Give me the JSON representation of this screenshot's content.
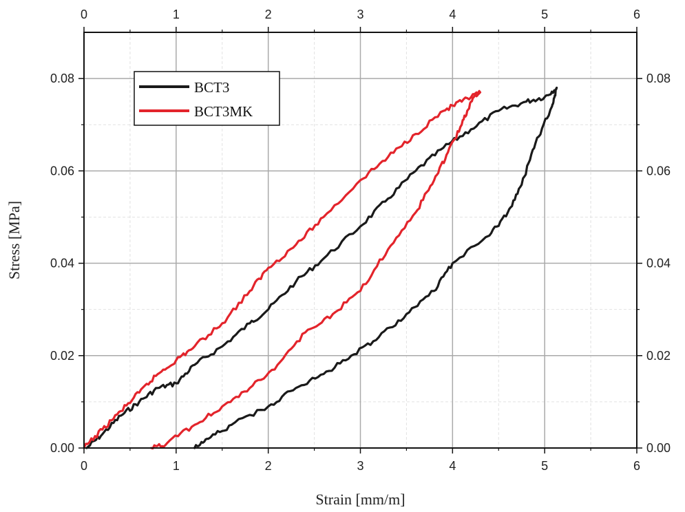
{
  "chart_data": {
    "type": "line",
    "xlabel": "Strain [mm/m]",
    "ylabel": "Stress [MPa]",
    "xlim": [
      0,
      6
    ],
    "ylim": [
      0,
      0.09
    ],
    "x_ticks": [
      "0",
      "1",
      "2",
      "3",
      "4",
      "5",
      "6"
    ],
    "y_ticks": [
      "0.00",
      "0.02",
      "0.04",
      "0.06",
      "0.08"
    ],
    "grid": true,
    "legend_position": "top-left",
    "series": [
      {
        "name": "BCT3",
        "color": "#1a1a1a",
        "points": [
          [
            0.03,
            0.0
          ],
          [
            0.2,
            0.003
          ],
          [
            0.4,
            0.007
          ],
          [
            0.6,
            0.01
          ],
          [
            0.8,
            0.013
          ],
          [
            1.0,
            0.014
          ],
          [
            1.2,
            0.018
          ],
          [
            1.5,
            0.022
          ],
          [
            1.8,
            0.027
          ],
          [
            2.0,
            0.03
          ],
          [
            2.3,
            0.036
          ],
          [
            2.6,
            0.041
          ],
          [
            3.0,
            0.048
          ],
          [
            3.3,
            0.054
          ],
          [
            3.6,
            0.06
          ],
          [
            3.9,
            0.065
          ],
          [
            4.2,
            0.069
          ],
          [
            4.5,
            0.073
          ],
          [
            4.8,
            0.075
          ],
          [
            5.0,
            0.076
          ],
          [
            5.13,
            0.078
          ],
          [
            5.08,
            0.074
          ],
          [
            4.9,
            0.066
          ],
          [
            4.75,
            0.057
          ],
          [
            4.6,
            0.051
          ],
          [
            4.4,
            0.046
          ],
          [
            4.0,
            0.04
          ],
          [
            3.8,
            0.034
          ],
          [
            3.5,
            0.029
          ],
          [
            3.2,
            0.024
          ],
          [
            2.9,
            0.02
          ],
          [
            2.6,
            0.016
          ],
          [
            2.3,
            0.013
          ],
          [
            2.0,
            0.009
          ],
          [
            1.6,
            0.005
          ],
          [
            1.35,
            0.002
          ],
          [
            1.2,
            0.0
          ]
        ]
      },
      {
        "name": "BCT3MK",
        "color": "#e3242b",
        "points": [
          [
            0.0,
            0.0
          ],
          [
            0.2,
            0.004
          ],
          [
            0.4,
            0.008
          ],
          [
            0.6,
            0.012
          ],
          [
            0.8,
            0.016
          ],
          [
            1.0,
            0.019
          ],
          [
            1.2,
            0.022
          ],
          [
            1.5,
            0.027
          ],
          [
            1.8,
            0.034
          ],
          [
            2.0,
            0.039
          ],
          [
            2.3,
            0.044
          ],
          [
            2.6,
            0.05
          ],
          [
            3.0,
            0.058
          ],
          [
            3.3,
            0.063
          ],
          [
            3.6,
            0.068
          ],
          [
            3.9,
            0.073
          ],
          [
            4.1,
            0.075
          ],
          [
            4.3,
            0.077
          ],
          [
            4.2,
            0.075
          ],
          [
            4.1,
            0.07
          ],
          [
            3.95,
            0.064
          ],
          [
            3.8,
            0.058
          ],
          [
            3.6,
            0.051
          ],
          [
            3.3,
            0.043
          ],
          [
            3.0,
            0.034
          ],
          [
            2.7,
            0.029
          ],
          [
            2.4,
            0.025
          ],
          [
            2.1,
            0.018
          ],
          [
            1.8,
            0.013
          ],
          [
            1.5,
            0.009
          ],
          [
            1.2,
            0.005
          ],
          [
            0.9,
            0.001
          ],
          [
            0.73,
            0.0
          ]
        ]
      }
    ]
  }
}
